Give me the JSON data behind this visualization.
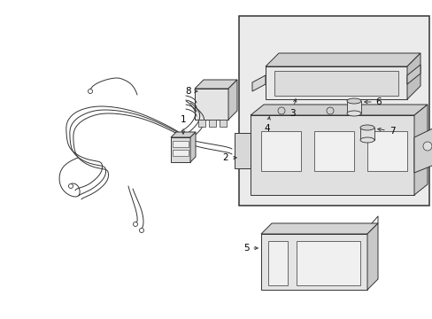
{
  "background_color": "#ffffff",
  "line_color": "#333333",
  "gray_fill": "#e0e0e0",
  "gray_fill2": "#c8c8c8",
  "shaded_fill": "#d8d8d8",
  "figsize": [
    4.89,
    3.6
  ],
  "dpi": 100
}
